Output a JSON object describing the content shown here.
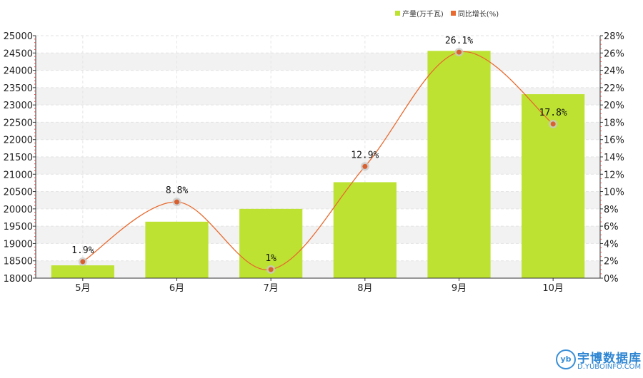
{
  "legend": {
    "bar_label": "产量(万千瓦)",
    "line_label": "同比增长(%)"
  },
  "colors": {
    "bar": "#bde232",
    "line": "#e86a2f",
    "point": "#d9602e",
    "halo": "#c8c8c8",
    "grid_band": "#f2f2f2"
  },
  "watermark": {
    "logo_glyph": "yb",
    "title": "宇博数据库",
    "subtitle": "D.YUBOINFO.COM"
  },
  "chart_data": {
    "type": "bar",
    "categories": [
      "5月",
      "6月",
      "7月",
      "8月",
      "9月",
      "10月"
    ],
    "series": [
      {
        "name": "产量(万千瓦)",
        "type": "bar",
        "axis": "left",
        "values": [
          18370,
          19630,
          20000,
          20770,
          24560,
          23310
        ]
      },
      {
        "name": "同比增长(%)",
        "type": "line",
        "axis": "right",
        "values": [
          1.9,
          8.8,
          1,
          12.9,
          26.1,
          17.8
        ],
        "labels": [
          "1.9%",
          "8.8%",
          "1%",
          "12.9%",
          "26.1%",
          "17.8%"
        ]
      }
    ],
    "y_left": {
      "min": 18000,
      "max": 25000,
      "step": 500
    },
    "y_right": {
      "min": 0,
      "max": 28,
      "step": 2,
      "suffix": "%"
    },
    "grid": true,
    "legend_position": "top-right"
  }
}
